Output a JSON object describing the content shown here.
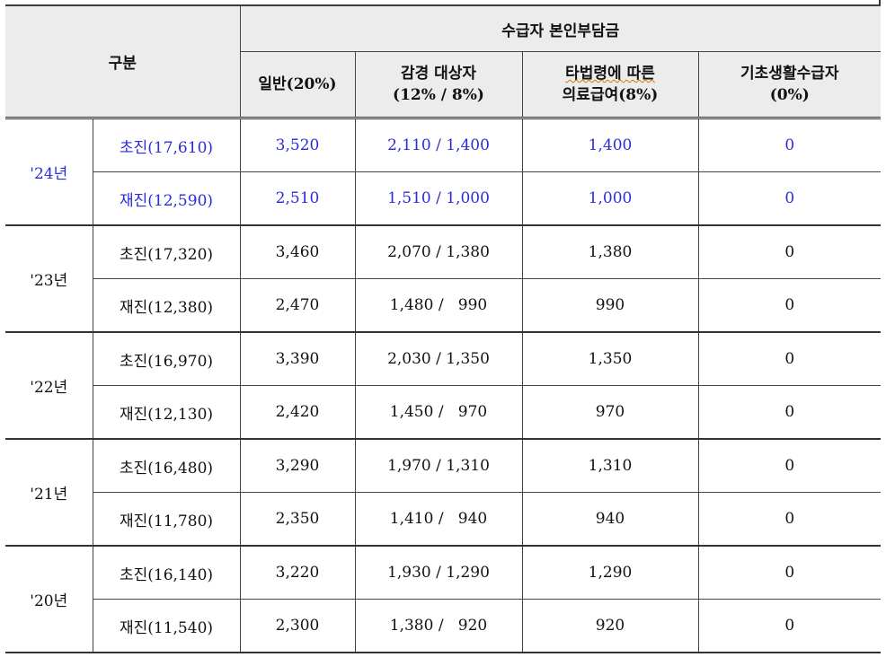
{
  "header": {
    "category": "구분",
    "main_group": "수급자 본인부담금",
    "columns": [
      {
        "line1": "일반(20%)",
        "line2": ""
      },
      {
        "line1": "감경 대상자",
        "line2": "(12% / 8%)"
      },
      {
        "line1": "타법령에 따른",
        "line2": "의료급여(8%)"
      },
      {
        "line1": "기초생활수급자",
        "line2": "(0%)"
      }
    ]
  },
  "rows": [
    {
      "year": "'24년",
      "type": "초진(17,610)",
      "general": "3,520",
      "reduced": "2,110 / 1,400",
      "other_law": "1,400",
      "basic": "0"
    },
    {
      "year": "'24년",
      "type": "재진(12,590)",
      "general": "2,510",
      "reduced": "1,510 / 1,000",
      "other_law": "1,000",
      "basic": "0"
    },
    {
      "year": "'23년",
      "type": "초진(17,320)",
      "general": "3,460",
      "reduced": "2,070 / 1,380",
      "other_law": "1,380",
      "basic": "0"
    },
    {
      "year": "'23년",
      "type": "재진(12,380)",
      "general": "2,470",
      "reduced": "1,480 /   990",
      "other_law": "990",
      "basic": "0"
    },
    {
      "year": "'22년",
      "type": "초진(16,970)",
      "general": "3,390",
      "reduced": "2,030 / 1,350",
      "other_law": "1,350",
      "basic": "0"
    },
    {
      "year": "'22년",
      "type": "재진(12,130)",
      "general": "2,420",
      "reduced": "1,450 /   970",
      "other_law": "970",
      "basic": "0"
    },
    {
      "year": "'21년",
      "type": "초진(16,480)",
      "general": "3,290",
      "reduced": "1,970 / 1,310",
      "other_law": "1,310",
      "basic": "0"
    },
    {
      "year": "'21년",
      "type": "재진(11,780)",
      "general": "2,350",
      "reduced": "1,410 /   940",
      "other_law": "940",
      "basic": "0"
    },
    {
      "year": "'20년",
      "type": "초진(16,140)",
      "general": "3,220",
      "reduced": "1,930 / 1,290",
      "other_law": "1,290",
      "basic": "0"
    },
    {
      "year": "'20년",
      "type": "재진(11,540)",
      "general": "2,300",
      "reduced": "1,380 /   920",
      "other_law": "920",
      "basic": "0"
    }
  ],
  "colors": {
    "highlight_row_text": "#2b2bd9",
    "header_bg": "#ececec",
    "border": "#444444"
  }
}
